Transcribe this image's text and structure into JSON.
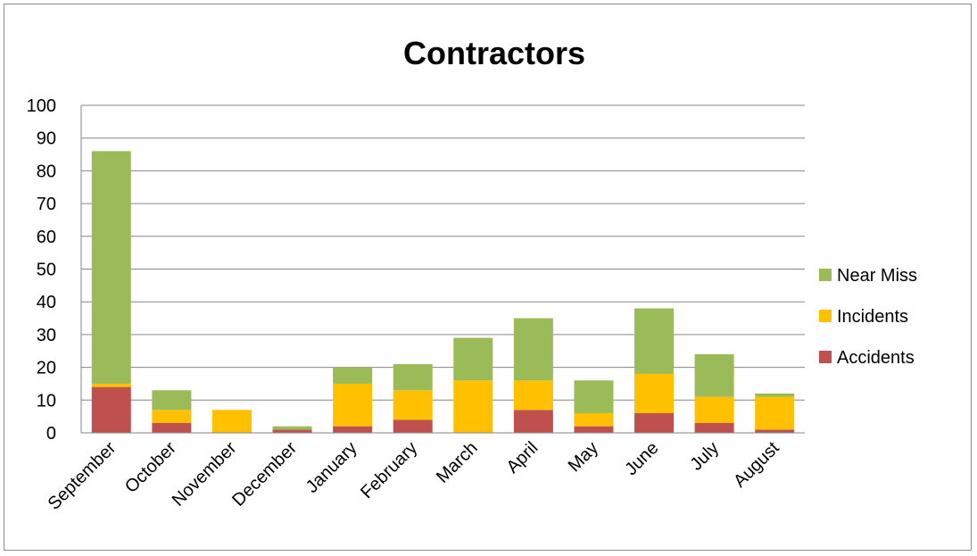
{
  "chart_data": {
    "type": "bar",
    "stacked": true,
    "title": "Contractors",
    "xlabel": "",
    "ylabel": "",
    "ylim": [
      0,
      100
    ],
    "yticks": [
      0,
      10,
      20,
      30,
      40,
      50,
      60,
      70,
      80,
      90,
      100
    ],
    "grid": true,
    "legend_position": "right",
    "categories": [
      "September",
      "October",
      "November",
      "December",
      "January",
      "February",
      "March",
      "April",
      "May",
      "June",
      "July",
      "August"
    ],
    "series": [
      {
        "name": "Accidents",
        "color": "#c0504d",
        "values": [
          14,
          3,
          0,
          1,
          2,
          4,
          0,
          7,
          2,
          6,
          3,
          1
        ]
      },
      {
        "name": "Incidents",
        "color": "#ffc000",
        "values": [
          1,
          4,
          7,
          0,
          13,
          9,
          16,
          9,
          4,
          12,
          8,
          10
        ]
      },
      {
        "name": "Near Miss",
        "color": "#9bbb59",
        "values": [
          71,
          6,
          0,
          1,
          5,
          8,
          13,
          19,
          10,
          20,
          13,
          1
        ]
      }
    ]
  }
}
